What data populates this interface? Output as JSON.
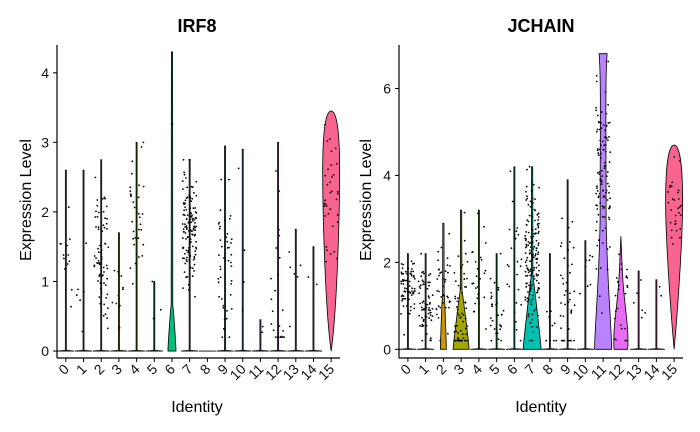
{
  "chart_data": [
    {
      "type": "violin",
      "title": "IRF8",
      "xlabel": "Identity",
      "ylabel": "Expression Level",
      "categories": [
        "0",
        "1",
        "2",
        "3",
        "4",
        "5",
        "6",
        "7",
        "8",
        "9",
        "10",
        "11",
        "12",
        "13",
        "14",
        "15"
      ],
      "ylim": [
        -0.1,
        4.4
      ],
      "yticks": [
        0,
        1,
        2,
        3,
        4
      ],
      "max_values": [
        2.6,
        2.6,
        2.75,
        1.7,
        3.0,
        1.0,
        4.3,
        2.75,
        0,
        2.95,
        2.9,
        0.45,
        3.0,
        1.75,
        1.5,
        3.45
      ],
      "point_center": [
        1.4,
        1.0,
        1.4,
        0.9,
        1.8,
        0.7,
        3.5,
        1.75,
        0,
        1.5,
        1.4,
        0.4,
        0.9,
        1.2,
        0.6,
        2.3
      ],
      "point_counts": [
        14,
        6,
        70,
        10,
        35,
        3,
        1,
        130,
        0,
        45,
        4,
        2,
        25,
        6,
        2,
        35
      ],
      "colors": [
        "#F8766D",
        "#E58700",
        "#C99800",
        "#A3A500",
        "#6BB100",
        "#00BA38",
        "#00BF7D",
        "#00C0AF",
        "#00BCD8",
        "#00B0F6",
        "#619CFF",
        "#B983FF",
        "#E76BF3",
        "#FD61D1",
        "#FF67A4",
        "#F8638F"
      ]
    },
    {
      "type": "violin",
      "title": "JCHAIN",
      "xlabel": "Identity",
      "ylabel": "Expression Level",
      "categories": [
        "0",
        "1",
        "2",
        "3",
        "4",
        "5",
        "6",
        "7",
        "8",
        "9",
        "10",
        "11",
        "12",
        "13",
        "14",
        "15"
      ],
      "ylim": [
        -0.2,
        7.0
      ],
      "yticks": [
        0,
        2,
        4,
        6
      ],
      "max_values": [
        2.2,
        2.2,
        2.9,
        3.2,
        3.2,
        2.2,
        4.2,
        4.2,
        2.2,
        3.9,
        2.5,
        6.8,
        2.6,
        1.8,
        1.6,
        4.7
      ],
      "point_center": [
        1.4,
        1.0,
        1.3,
        0.6,
        1.6,
        0.8,
        2.0,
        2.0,
        0.5,
        0.8,
        1.8,
        4.0,
        1.0,
        1.1,
        1.2,
        3.5
      ],
      "point_counts": [
        70,
        65,
        40,
        70,
        25,
        30,
        25,
        160,
        10,
        40,
        8,
        110,
        25,
        6,
        2,
        30
      ],
      "colors": [
        "#F8766D",
        "#E58700",
        "#C99800",
        "#A3A500",
        "#6BB100",
        "#00BA38",
        "#00BF7D",
        "#00C0AF",
        "#00BCD8",
        "#00B0F6",
        "#619CFF",
        "#B983FF",
        "#E76BF3",
        "#FD61D1",
        "#FF67A4",
        "#F8638F"
      ]
    }
  ]
}
